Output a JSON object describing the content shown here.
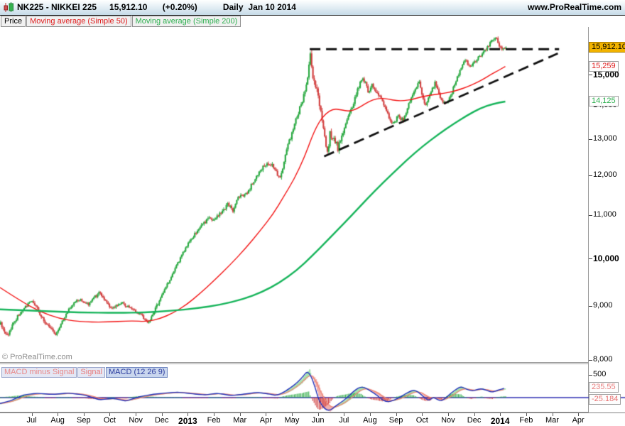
{
  "header": {
    "symbol_title": "NK225 - NIKKEI 225",
    "last_price": "15,912.10",
    "change": "(+0.20%)",
    "timeframe": "Daily",
    "date": "Jan 10 2014",
    "website": "www.ProRealTime.com"
  },
  "toolbar": {
    "buttons": [
      {
        "label": "Price",
        "color": "#000000"
      },
      {
        "label": "Moving average (Simple 50)",
        "color": "#e02020"
      },
      {
        "label": "Moving average (Simple 200)",
        "color": "#2eb050"
      }
    ]
  },
  "macd_toolbar": {
    "buttons": [
      {
        "label": "MACD minus Signal",
        "color": "#e98989",
        "selected": false
      },
      {
        "label": "Signal",
        "color": "#e87a7a",
        "selected": false
      },
      {
        "label": "MACD (12 26 9)",
        "color": "#2b3c9e",
        "selected": true
      }
    ]
  },
  "watermark": "© ProRealTime.com",
  "price_axis": {
    "labels": [
      {
        "text": "15,000",
        "price": 15000,
        "bold": true
      },
      {
        "text": "14,000",
        "price": 14000,
        "bold": false
      },
      {
        "text": "13,000",
        "price": 13000,
        "bold": false
      },
      {
        "text": "12,000",
        "price": 12000,
        "bold": false
      },
      {
        "text": "11,000",
        "price": 11000,
        "bold": false
      },
      {
        "text": "10,000",
        "price": 10000,
        "bold": true
      },
      {
        "text": "9,000",
        "price": 9000,
        "bold": false
      },
      {
        "text": "8,000",
        "price": 8000,
        "bold": false
      }
    ],
    "badges": [
      {
        "text": "15,912.10",
        "price": 15912.1,
        "bg": "#f2b300",
        "border": "#a87d00",
        "color": "#000000",
        "name": "last-price-badge"
      },
      {
        "text": "15,259",
        "price": 15259,
        "bg": "#fdfdfd",
        "border": "#9e9e9e",
        "color": "#e02020",
        "name": "ma50-value-badge"
      },
      {
        "text": "14,125",
        "price": 14125,
        "bg": "#fdfdfd",
        "border": "#9e9e9e",
        "color": "#2eb050",
        "name": "ma200-value-badge"
      }
    ]
  },
  "macd_axis": {
    "gridline": {
      "text": "500",
      "value": 500
    },
    "badges": [
      {
        "text": "235.55",
        "value": 235.55,
        "color": "#e98080",
        "name": "macd-minus-signal-value-badge"
      },
      {
        "text": "-25.184",
        "value": -25.184,
        "color": "#e87070",
        "name": "signal-value-badge"
      }
    ]
  },
  "x_axis": {
    "months": [
      {
        "label": "Jul"
      },
      {
        "label": "Aug"
      },
      {
        "label": "Sep"
      },
      {
        "label": "Oct"
      },
      {
        "label": "Nov"
      },
      {
        "label": "Dec"
      },
      {
        "label": "2013",
        "bold": true
      },
      {
        "label": "Feb"
      },
      {
        "label": "Mar"
      },
      {
        "label": "Apr"
      },
      {
        "label": "May"
      },
      {
        "label": "Jun"
      },
      {
        "label": "Jul"
      },
      {
        "label": "Aug"
      },
      {
        "label": "Sep"
      },
      {
        "label": "Oct"
      },
      {
        "label": "Nov"
      },
      {
        "label": "Dec"
      },
      {
        "label": "2014",
        "bold": true
      },
      {
        "label": "Feb"
      },
      {
        "label": "Mar"
      },
      {
        "label": "Apr"
      }
    ]
  },
  "chart_data": {
    "type": "candlestick",
    "title": "NK225 - NIKKEI 225 Daily",
    "y_axis": {
      "scale": "log",
      "visible_range": [
        8000,
        16400
      ],
      "tick_values": [
        8000,
        9000,
        10000,
        11000,
        12000,
        13000,
        14000,
        15000
      ]
    },
    "x_axis_range": "mid-Jun 2012 to Apr 2014 (data ends Jan 10 2014)",
    "last_close": 15912.1,
    "change_pct": 0.2,
    "colors": {
      "up": "#27a83f",
      "down": "#d24040",
      "ma50": "#f31212",
      "ma200": "#16b45a",
      "trendline": "#111111",
      "macd_line": "#2233bb",
      "signal_line": "#ee8877",
      "fill_pos": "#a6e2ae",
      "fill_neg": "#f2b0ac",
      "hist_pos": "#27a83f",
      "hist_neg": "#cc3333",
      "zero_line": "#2d2db0"
    },
    "price_anchors_day_price_vol": [
      [
        0,
        8650,
        0.8
      ],
      [
        5,
        8430,
        0.8
      ],
      [
        13,
        8800,
        0.7
      ],
      [
        24,
        9130,
        0.7
      ],
      [
        32,
        8760,
        0.7
      ],
      [
        42,
        8440,
        0.7
      ],
      [
        51,
        8900,
        0.6
      ],
      [
        59,
        9140,
        0.6
      ],
      [
        67,
        9040,
        0.6
      ],
      [
        75,
        9280,
        0.6
      ],
      [
        84,
        8960,
        0.6
      ],
      [
        92,
        9070,
        0.5
      ],
      [
        100,
        8950,
        0.5
      ],
      [
        108,
        8820,
        0.5
      ],
      [
        112,
        8660,
        0.5
      ],
      [
        120,
        9060,
        0.6
      ],
      [
        127,
        9440,
        0.6
      ],
      [
        135,
        9890,
        0.6
      ],
      [
        143,
        10350,
        0.6
      ],
      [
        150,
        10650,
        0.7
      ],
      [
        158,
        10900,
        0.7
      ],
      [
        165,
        10950,
        0.7
      ],
      [
        173,
        11250,
        0.7
      ],
      [
        177,
        11120,
        0.7
      ],
      [
        181,
        11410,
        0.7
      ],
      [
        188,
        11560,
        0.7
      ],
      [
        196,
        12050,
        0.7
      ],
      [
        203,
        12350,
        0.8
      ],
      [
        208,
        12240,
        0.8
      ],
      [
        213,
        11900,
        0.9
      ],
      [
        219,
        12800,
        0.9
      ],
      [
        224,
        13450,
        0.9
      ],
      [
        230,
        14180,
        1.0
      ],
      [
        234,
        14900,
        1.1
      ],
      [
        236,
        15600,
        1.3
      ],
      [
        238,
        14750,
        1.6
      ],
      [
        242,
        14300,
        1.6
      ],
      [
        244,
        13800,
        1.5
      ],
      [
        246,
        13350,
        1.4
      ],
      [
        249,
        12580,
        1.4
      ],
      [
        251,
        13150,
        1.3
      ],
      [
        254,
        13000,
        1.2
      ],
      [
        257,
        12750,
        1.2
      ],
      [
        261,
        13250,
        1.1
      ],
      [
        265,
        13650,
        1.0
      ],
      [
        269,
        14100,
        0.9
      ],
      [
        273,
        14600,
        0.9
      ],
      [
        276,
        14900,
        0.8
      ],
      [
        280,
        14450,
        0.8
      ],
      [
        283,
        14650,
        0.8
      ],
      [
        288,
        14330,
        0.8
      ],
      [
        292,
        14000,
        0.8
      ],
      [
        296,
        13620,
        0.8
      ],
      [
        299,
        13420,
        0.8
      ],
      [
        303,
        13700,
        0.7
      ],
      [
        307,
        13520,
        0.7
      ],
      [
        311,
        14100,
        0.7
      ],
      [
        316,
        14500,
        0.7
      ],
      [
        319,
        14730,
        0.7
      ],
      [
        322,
        14250,
        0.8
      ],
      [
        324,
        13980,
        0.8
      ],
      [
        328,
        14400,
        0.7
      ],
      [
        331,
        14700,
        0.7
      ],
      [
        334,
        14340,
        0.7
      ],
      [
        337,
        14100,
        0.7
      ],
      [
        340,
        14060,
        0.6
      ],
      [
        344,
        14420,
        0.6
      ],
      [
        348,
        14920,
        0.6
      ],
      [
        351,
        15180,
        0.6
      ],
      [
        354,
        15480,
        0.6
      ],
      [
        357,
        15250,
        0.6
      ],
      [
        360,
        15360,
        0.6
      ],
      [
        364,
        15560,
        0.6
      ],
      [
        367,
        15700,
        0.6
      ],
      [
        370,
        15860,
        0.6
      ],
      [
        373,
        16060,
        0.6
      ],
      [
        377,
        16260,
        0.7
      ],
      [
        380,
        16010,
        0.7
      ],
      [
        383,
        15820,
        0.7
      ],
      [
        385,
        15912,
        0.5
      ]
    ],
    "ma50_day_value": [
      [
        0,
        9380
      ],
      [
        15,
        9120
      ],
      [
        30,
        8900
      ],
      [
        45,
        8760
      ],
      [
        60,
        8700
      ],
      [
        80,
        8690
      ],
      [
        100,
        8720
      ],
      [
        112,
        8700
      ],
      [
        122,
        8760
      ],
      [
        132,
        8870
      ],
      [
        142,
        9030
      ],
      [
        152,
        9250
      ],
      [
        163,
        9520
      ],
      [
        175,
        9850
      ],
      [
        187,
        10220
      ],
      [
        198,
        10620
      ],
      [
        208,
        11020
      ],
      [
        216,
        11450
      ],
      [
        224,
        11900
      ],
      [
        232,
        12500
      ],
      [
        238,
        13100
      ],
      [
        243,
        13500
      ],
      [
        248,
        13750
      ],
      [
        254,
        13900
      ],
      [
        260,
        13870
      ],
      [
        266,
        13820
      ],
      [
        272,
        13900
      ],
      [
        278,
        14050
      ],
      [
        284,
        14180
      ],
      [
        290,
        14230
      ],
      [
        296,
        14200
      ],
      [
        302,
        14150
      ],
      [
        308,
        14150
      ],
      [
        314,
        14190
      ],
      [
        320,
        14260
      ],
      [
        326,
        14310
      ],
      [
        332,
        14350
      ],
      [
        338,
        14380
      ],
      [
        344,
        14430
      ],
      [
        350,
        14500
      ],
      [
        356,
        14590
      ],
      [
        362,
        14700
      ],
      [
        368,
        14830
      ],
      [
        374,
        14990
      ],
      [
        380,
        15130
      ],
      [
        385,
        15259
      ]
    ],
    "ma200_day_value": [
      [
        0,
        8940
      ],
      [
        30,
        8910
      ],
      [
        60,
        8880
      ],
      [
        90,
        8870
      ],
      [
        110,
        8880
      ],
      [
        130,
        8910
      ],
      [
        150,
        8960
      ],
      [
        168,
        9030
      ],
      [
        185,
        9140
      ],
      [
        200,
        9290
      ],
      [
        213,
        9480
      ],
      [
        226,
        9740
      ],
      [
        238,
        10060
      ],
      [
        250,
        10420
      ],
      [
        262,
        10800
      ],
      [
        274,
        11200
      ],
      [
        286,
        11620
      ],
      [
        298,
        12020
      ],
      [
        310,
        12420
      ],
      [
        322,
        12800
      ],
      [
        334,
        13140
      ],
      [
        346,
        13460
      ],
      [
        356,
        13700
      ],
      [
        366,
        13920
      ],
      [
        376,
        14060
      ],
      [
        385,
        14125
      ]
    ],
    "macd_day_value": [
      [
        0,
        -130
      ],
      [
        8,
        -70
      ],
      [
        18,
        60
      ],
      [
        28,
        95
      ],
      [
        40,
        70
      ],
      [
        52,
        100
      ],
      [
        64,
        60
      ],
      [
        76,
        -50
      ],
      [
        86,
        -15
      ],
      [
        96,
        -75
      ],
      [
        106,
        20
      ],
      [
        116,
        70
      ],
      [
        126,
        100
      ],
      [
        136,
        120
      ],
      [
        146,
        85
      ],
      [
        156,
        60
      ],
      [
        166,
        95
      ],
      [
        176,
        45
      ],
      [
        186,
        75
      ],
      [
        196,
        115
      ],
      [
        204,
        85
      ],
      [
        211,
        45
      ],
      [
        217,
        130
      ],
      [
        224,
        270
      ],
      [
        230,
        430
      ],
      [
        235,
        620
      ],
      [
        239,
        330
      ],
      [
        243,
        -60
      ],
      [
        247,
        -250
      ],
      [
        251,
        -305
      ],
      [
        255,
        -200
      ],
      [
        259,
        -120
      ],
      [
        263,
        -40
      ],
      [
        267,
        70
      ],
      [
        271,
        180
      ],
      [
        275,
        245
      ],
      [
        279,
        205
      ],
      [
        283,
        130
      ],
      [
        287,
        60
      ],
      [
        291,
        -40
      ],
      [
        295,
        -105
      ],
      [
        299,
        -70
      ],
      [
        303,
        -15
      ],
      [
        307,
        45
      ],
      [
        311,
        120
      ],
      [
        315,
        165
      ],
      [
        318,
        135
      ],
      [
        321,
        65
      ],
      [
        324,
        -15
      ],
      [
        327,
        -65
      ],
      [
        330,
        10
      ],
      [
        333,
        -35
      ],
      [
        336,
        -75
      ],
      [
        339,
        -25
      ],
      [
        343,
        85
      ],
      [
        347,
        175
      ],
      [
        351,
        240
      ],
      [
        355,
        195
      ],
      [
        359,
        140
      ],
      [
        363,
        170
      ],
      [
        367,
        205
      ],
      [
        371,
        155
      ],
      [
        375,
        120
      ],
      [
        379,
        160
      ],
      [
        385,
        212
      ]
    ],
    "macd_readout": {
      "macd_minus_signal": 235.55,
      "signal": -25.184,
      "gridline": 500
    },
    "trendlines": [
      {
        "name": "horizontal-resistance",
        "style": "dashed",
        "from_day": 236,
        "from_price": 15850,
        "to_day": 426,
        "to_price": 15850
      },
      {
        "name": "ascending-support",
        "style": "dashed",
        "from_day": 247,
        "from_price": 12520,
        "to_day": 425,
        "to_price": 15700
      }
    ]
  }
}
